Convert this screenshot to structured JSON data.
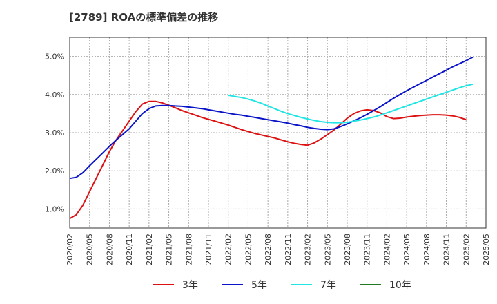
{
  "chart_data": {
    "type": "line",
    "title": "[2789]  ROAの標準偏差の推移",
    "xlabel": "",
    "ylabel": "",
    "ylim": [
      0.5,
      5.5
    ],
    "y_ticks": [
      "1.0%",
      "2.0%",
      "3.0%",
      "4.0%",
      "5.0%"
    ],
    "y_tick_values": [
      1.0,
      2.0,
      3.0,
      4.0,
      5.0
    ],
    "x_ticks": [
      "2020/02",
      "2020/05",
      "2020/08",
      "2020/11",
      "2021/02",
      "2021/05",
      "2021/08",
      "2021/11",
      "2022/02",
      "2022/05",
      "2022/08",
      "2022/11",
      "2023/02",
      "2023/05",
      "2023/08",
      "2023/11",
      "2024/02",
      "2024/05",
      "2024/08",
      "2024/11",
      "2025/02",
      "2025/05"
    ],
    "grid": true,
    "legend_position": "bottom",
    "series": [
      {
        "name": "3年",
        "color": "#dd1111",
        "points": [
          [
            "2020/02",
            0.75
          ],
          [
            "2020/03",
            0.85
          ],
          [
            "2020/04",
            1.1
          ],
          [
            "2020/05",
            1.45
          ],
          [
            "2020/06",
            1.8
          ],
          [
            "2020/07",
            2.15
          ],
          [
            "2020/08",
            2.5
          ],
          [
            "2020/09",
            2.8
          ],
          [
            "2020/10",
            3.05
          ],
          [
            "2020/11",
            3.3
          ],
          [
            "2020/12",
            3.55
          ],
          [
            "2021/01",
            3.75
          ],
          [
            "2021/02",
            3.82
          ],
          [
            "2021/03",
            3.82
          ],
          [
            "2021/04",
            3.78
          ],
          [
            "2021/05",
            3.72
          ],
          [
            "2021/06",
            3.65
          ],
          [
            "2021/07",
            3.58
          ],
          [
            "2021/08",
            3.52
          ],
          [
            "2021/09",
            3.46
          ],
          [
            "2021/10",
            3.4
          ],
          [
            "2021/11",
            3.35
          ],
          [
            "2021/12",
            3.3
          ],
          [
            "2022/01",
            3.25
          ],
          [
            "2022/02",
            3.2
          ],
          [
            "2022/03",
            3.14
          ],
          [
            "2022/04",
            3.08
          ],
          [
            "2022/05",
            3.03
          ],
          [
            "2022/06",
            2.98
          ],
          [
            "2022/07",
            2.94
          ],
          [
            "2022/08",
            2.9
          ],
          [
            "2022/09",
            2.86
          ],
          [
            "2022/10",
            2.81
          ],
          [
            "2022/11",
            2.76
          ],
          [
            "2022/12",
            2.72
          ],
          [
            "2023/01",
            2.69
          ],
          [
            "2023/02",
            2.67
          ],
          [
            "2023/03",
            2.73
          ],
          [
            "2023/04",
            2.83
          ],
          [
            "2023/05",
            2.95
          ],
          [
            "2023/06",
            3.07
          ],
          [
            "2023/07",
            3.22
          ],
          [
            "2023/08",
            3.38
          ],
          [
            "2023/09",
            3.5
          ],
          [
            "2023/10",
            3.57
          ],
          [
            "2023/11",
            3.6
          ],
          [
            "2023/12",
            3.58
          ],
          [
            "2024/01",
            3.52
          ],
          [
            "2024/02",
            3.42
          ],
          [
            "2024/03",
            3.37
          ],
          [
            "2024/04",
            3.38
          ],
          [
            "2024/05",
            3.41
          ],
          [
            "2024/06",
            3.43
          ],
          [
            "2024/07",
            3.45
          ],
          [
            "2024/08",
            3.46
          ],
          [
            "2024/09",
            3.47
          ],
          [
            "2024/10",
            3.47
          ],
          [
            "2024/11",
            3.46
          ],
          [
            "2024/12",
            3.44
          ],
          [
            "2025/01",
            3.4
          ],
          [
            "2025/02",
            3.34
          ]
        ]
      },
      {
        "name": "5年",
        "color": "#0a14c8",
        "points": [
          [
            "2020/02",
            1.8
          ],
          [
            "2020/03",
            1.83
          ],
          [
            "2020/04",
            1.95
          ],
          [
            "2020/05",
            2.13
          ],
          [
            "2020/06",
            2.3
          ],
          [
            "2020/07",
            2.47
          ],
          [
            "2020/08",
            2.64
          ],
          [
            "2020/09",
            2.8
          ],
          [
            "2020/10",
            2.95
          ],
          [
            "2020/11",
            3.1
          ],
          [
            "2020/12",
            3.3
          ],
          [
            "2021/01",
            3.5
          ],
          [
            "2021/02",
            3.63
          ],
          [
            "2021/03",
            3.7
          ],
          [
            "2021/04",
            3.71
          ],
          [
            "2021/05",
            3.71
          ],
          [
            "2021/06",
            3.7
          ],
          [
            "2021/07",
            3.69
          ],
          [
            "2021/08",
            3.67
          ],
          [
            "2021/09",
            3.65
          ],
          [
            "2021/10",
            3.63
          ],
          [
            "2021/11",
            3.6
          ],
          [
            "2021/12",
            3.57
          ],
          [
            "2022/01",
            3.54
          ],
          [
            "2022/02",
            3.51
          ],
          [
            "2022/03",
            3.48
          ],
          [
            "2022/04",
            3.46
          ],
          [
            "2022/05",
            3.43
          ],
          [
            "2022/06",
            3.4
          ],
          [
            "2022/07",
            3.37
          ],
          [
            "2022/08",
            3.34
          ],
          [
            "2022/09",
            3.31
          ],
          [
            "2022/10",
            3.28
          ],
          [
            "2022/11",
            3.25
          ],
          [
            "2022/12",
            3.21
          ],
          [
            "2023/01",
            3.18
          ],
          [
            "2023/02",
            3.14
          ],
          [
            "2023/03",
            3.11
          ],
          [
            "2023/04",
            3.09
          ],
          [
            "2023/05",
            3.08
          ],
          [
            "2023/06",
            3.1
          ],
          [
            "2023/07",
            3.16
          ],
          [
            "2023/08",
            3.23
          ],
          [
            "2023/09",
            3.31
          ],
          [
            "2023/10",
            3.39
          ],
          [
            "2023/11",
            3.48
          ],
          [
            "2023/12",
            3.58
          ],
          [
            "2024/01",
            3.68
          ],
          [
            "2024/02",
            3.79
          ],
          [
            "2024/03",
            3.9
          ],
          [
            "2024/04",
            4.0
          ],
          [
            "2024/05",
            4.1
          ],
          [
            "2024/06",
            4.19
          ],
          [
            "2024/07",
            4.28
          ],
          [
            "2024/08",
            4.37
          ],
          [
            "2024/09",
            4.46
          ],
          [
            "2024/10",
            4.55
          ],
          [
            "2024/11",
            4.64
          ],
          [
            "2024/12",
            4.73
          ],
          [
            "2025/01",
            4.81
          ],
          [
            "2025/02",
            4.89
          ],
          [
            "2025/03",
            4.98
          ]
        ]
      },
      {
        "name": "7年",
        "color": "#22e5e5",
        "points": [
          [
            "2022/02",
            3.98
          ],
          [
            "2022/03",
            3.95
          ],
          [
            "2022/04",
            3.92
          ],
          [
            "2022/05",
            3.88
          ],
          [
            "2022/06",
            3.83
          ],
          [
            "2022/07",
            3.77
          ],
          [
            "2022/08",
            3.7
          ],
          [
            "2022/09",
            3.63
          ],
          [
            "2022/10",
            3.56
          ],
          [
            "2022/11",
            3.5
          ],
          [
            "2022/12",
            3.45
          ],
          [
            "2023/01",
            3.4
          ],
          [
            "2023/02",
            3.36
          ],
          [
            "2023/03",
            3.32
          ],
          [
            "2023/04",
            3.29
          ],
          [
            "2023/05",
            3.27
          ],
          [
            "2023/06",
            3.26
          ],
          [
            "2023/07",
            3.26
          ],
          [
            "2023/08",
            3.27
          ],
          [
            "2023/09",
            3.3
          ],
          [
            "2023/10",
            3.33
          ],
          [
            "2023/11",
            3.37
          ],
          [
            "2023/12",
            3.41
          ],
          [
            "2024/01",
            3.46
          ],
          [
            "2024/02",
            3.52
          ],
          [
            "2024/03",
            3.58
          ],
          [
            "2024/04",
            3.64
          ],
          [
            "2024/05",
            3.7
          ],
          [
            "2024/06",
            3.76
          ],
          [
            "2024/07",
            3.82
          ],
          [
            "2024/08",
            3.88
          ],
          [
            "2024/09",
            3.94
          ],
          [
            "2024/10",
            4.0
          ],
          [
            "2024/11",
            4.06
          ],
          [
            "2024/12",
            4.12
          ],
          [
            "2025/01",
            4.18
          ],
          [
            "2025/02",
            4.23
          ],
          [
            "2025/03",
            4.27
          ]
        ]
      },
      {
        "name": "10年",
        "color": "#1f7a1f",
        "points": []
      }
    ]
  }
}
